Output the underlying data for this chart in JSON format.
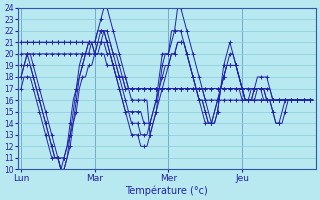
{
  "xlabel": "Température (°c)",
  "bg_color": "#b8e8f0",
  "grid_color": "#88ccdd",
  "line_color": "#2222aa",
  "marker": "+",
  "ylim": [
    10,
    24
  ],
  "yticks": [
    10,
    11,
    12,
    13,
    14,
    15,
    16,
    17,
    18,
    19,
    20,
    21,
    22,
    23,
    24
  ],
  "day_positions": [
    0,
    24,
    48,
    72
  ],
  "day_labels": [
    "Lun",
    "Mar",
    "Mer",
    "Jeu"
  ],
  "n_points": 96,
  "series": [
    [
      21,
      21,
      21,
      21,
      21,
      21,
      21,
      21,
      21,
      21,
      21,
      21,
      21,
      21,
      21,
      21,
      21,
      21,
      21,
      21,
      21,
      21,
      21,
      21,
      21,
      22,
      22,
      22,
      21,
      21,
      20,
      20,
      19,
      18,
      18,
      17,
      17,
      17,
      17,
      17,
      17,
      17,
      17,
      17,
      17,
      17,
      17,
      17,
      17,
      17,
      17,
      17,
      17,
      17,
      17,
      17,
      17,
      17,
      17,
      17,
      17,
      17,
      17,
      17,
      17,
      17,
      17,
      17,
      17,
      17,
      17,
      17,
      17,
      17,
      17,
      17,
      17,
      17,
      17,
      16,
      16,
      16,
      16,
      16,
      16,
      16,
      16,
      16,
      16,
      16,
      16,
      16,
      16,
      16,
      16,
      16
    ],
    [
      21,
      21,
      21,
      21,
      21,
      21,
      21,
      21,
      21,
      21,
      21,
      21,
      21,
      21,
      21,
      21,
      21,
      21,
      21,
      21,
      21,
      21,
      21,
      21,
      21,
      21,
      21,
      21,
      20,
      20,
      19,
      19,
      18,
      18,
      17,
      17,
      17,
      17,
      17,
      17,
      17,
      17,
      17,
      17,
      17,
      17,
      17,
      17,
      17,
      17,
      17,
      17,
      17,
      17,
      17,
      17,
      17,
      17,
      17,
      17,
      17,
      17,
      17,
      17,
      17,
      17,
      17,
      17,
      17,
      17,
      17,
      17,
      16,
      16,
      16,
      16,
      16,
      16,
      16,
      16,
      16,
      16,
      16,
      16,
      16,
      16,
      16,
      16,
      16,
      16,
      16,
      16,
      16,
      16,
      16,
      16
    ],
    [
      20,
      20,
      20,
      20,
      20,
      20,
      20,
      20,
      20,
      20,
      20,
      20,
      20,
      20,
      20,
      20,
      20,
      20,
      20,
      20,
      20,
      20,
      20,
      20,
      20,
      20,
      20,
      20,
      19,
      19,
      19,
      18,
      18,
      18,
      17,
      17,
      17,
      17,
      17,
      17,
      17,
      17,
      17,
      17,
      17,
      17,
      17,
      17,
      17,
      17,
      17,
      17,
      17,
      17,
      17,
      17,
      17,
      17,
      17,
      17,
      16,
      16,
      16,
      16,
      16,
      16,
      16,
      16,
      16,
      16,
      16,
      16,
      16,
      16,
      16,
      16,
      16,
      16,
      16,
      16,
      16,
      16,
      16,
      16,
      16,
      16,
      16,
      16,
      16,
      16,
      16,
      16,
      16,
      16,
      16,
      16
    ],
    [
      18,
      19,
      20,
      20,
      19,
      18,
      17,
      16,
      15,
      14,
      13,
      12,
      11,
      10,
      10,
      11,
      12,
      14,
      16,
      18,
      19,
      20,
      21,
      21,
      21,
      22,
      23,
      24,
      24,
      23,
      22,
      21,
      20,
      19,
      18,
      17,
      16,
      16,
      16,
      16,
      16,
      16,
      13,
      14,
      15,
      17,
      19,
      20,
      20,
      22,
      22,
      24,
      24,
      23,
      22,
      21,
      20,
      19,
      18,
      17,
      16,
      15,
      14,
      14,
      15,
      17,
      19,
      20,
      21,
      20,
      19,
      18,
      17,
      16,
      16,
      16,
      17,
      18,
      18,
      18,
      18,
      17,
      16,
      16,
      16,
      16,
      16,
      16,
      16,
      16,
      16,
      16,
      16,
      16,
      16,
      16
    ],
    [
      18,
      19,
      19,
      19,
      18,
      17,
      16,
      15,
      14,
      13,
      12,
      11,
      11,
      10,
      11,
      12,
      13,
      15,
      17,
      18,
      19,
      20,
      21,
      21,
      20,
      21,
      21,
      22,
      22,
      21,
      20,
      19,
      18,
      17,
      16,
      15,
      15,
      15,
      15,
      15,
      14,
      14,
      14,
      15,
      16,
      18,
      20,
      20,
      20,
      21,
      22,
      22,
      22,
      21,
      20,
      19,
      18,
      17,
      16,
      16,
      15,
      14,
      14,
      15,
      16,
      17,
      18,
      19,
      20,
      20,
      19,
      18,
      17,
      16,
      16,
      16,
      17,
      17,
      17,
      17,
      16,
      16,
      15,
      14,
      14,
      15,
      16,
      16,
      16,
      16,
      16,
      16,
      16,
      16,
      16,
      16
    ],
    [
      19,
      19,
      20,
      19,
      18,
      17,
      16,
      15,
      14,
      13,
      12,
      11,
      11,
      10,
      10,
      11,
      13,
      14,
      15,
      17,
      18,
      18,
      19,
      19,
      20,
      21,
      22,
      22,
      21,
      20,
      19,
      18,
      17,
      16,
      15,
      14,
      13,
      13,
      13,
      12,
      12,
      12,
      13,
      14,
      15,
      16,
      17,
      18,
      19,
      20,
      20,
      21,
      21,
      21,
      20,
      19,
      18,
      17,
      16,
      15,
      14,
      14,
      14,
      15,
      16,
      17,
      18,
      19,
      19,
      19,
      19,
      18,
      17,
      16,
      16,
      17,
      17,
      17,
      17,
      17,
      17,
      17,
      16,
      16,
      16,
      16,
      16,
      16,
      16,
      16,
      16,
      16,
      16,
      16,
      16,
      16
    ],
    [
      17,
      18,
      18,
      18,
      17,
      16,
      15,
      14,
      13,
      12,
      11,
      11,
      11,
      11,
      11,
      12,
      14,
      16,
      17,
      19,
      20,
      20,
      20,
      21,
      20,
      20,
      21,
      21,
      21,
      20,
      19,
      18,
      17,
      16,
      15,
      15,
      14,
      14,
      14,
      13,
      13,
      13,
      14,
      15,
      16,
      17,
      18,
      19,
      19,
      20,
      20,
      21,
      21,
      21,
      20,
      19,
      18,
      17,
      16,
      16,
      15,
      14,
      14,
      14,
      15,
      17,
      18,
      19,
      19,
      19,
      19,
      18,
      17,
      16,
      16,
      16,
      16,
      17,
      17,
      17,
      16,
      16,
      15,
      14,
      14,
      14,
      15,
      16,
      16,
      16,
      16,
      16,
      16,
      16,
      16,
      16
    ]
  ]
}
